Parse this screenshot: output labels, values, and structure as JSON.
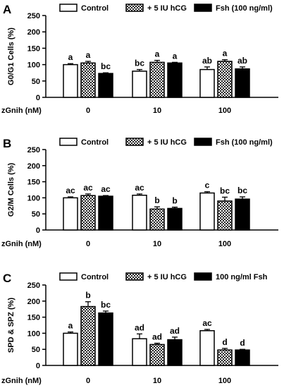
{
  "chart_data": [
    {
      "type": "bar",
      "panel_letter": "A",
      "categories": [
        "0",
        "10",
        "100"
      ],
      "xlabel": "zGnih (nM)",
      "ylabel": "G0/G1 Cells (%)",
      "ylim": [
        0,
        250
      ],
      "yticks": [
        0,
        50,
        100,
        150,
        200,
        250
      ],
      "legend_position": "top",
      "series": [
        {
          "name": "Control",
          "fill": "white",
          "values": [
            100,
            80,
            85
          ],
          "errors": [
            3,
            5,
            8
          ],
          "letters": [
            "a",
            "bc",
            "ab"
          ]
        },
        {
          "name": "+ 5 IU hCG",
          "fill": "checker",
          "values": [
            105,
            107,
            110
          ],
          "errors": [
            5,
            6,
            5
          ],
          "letters": [
            "a",
            "a",
            "a"
          ]
        },
        {
          "name": "Fsh (100 ng/ml)",
          "fill": "black",
          "values": [
            73,
            105,
            87
          ],
          "errors": [
            2,
            2,
            6
          ],
          "letters": [
            "bc",
            "a",
            "ab"
          ]
        }
      ]
    },
    {
      "type": "bar",
      "panel_letter": "B",
      "categories": [
        "0",
        "10",
        "100"
      ],
      "xlabel": "zGnih (nM)",
      "ylabel": "G2/M Cells (%)",
      "ylim": [
        0,
        250
      ],
      "yticks": [
        0,
        50,
        100,
        150,
        200,
        250
      ],
      "legend_position": "top",
      "series": [
        {
          "name": "Control",
          "fill": "white",
          "values": [
            100,
            108,
            115
          ],
          "errors": [
            3,
            4,
            4
          ],
          "letters": [
            "ac",
            "ac",
            "c"
          ]
        },
        {
          "name": "+ 5 IU hCG",
          "fill": "checker",
          "values": [
            107,
            65,
            90
          ],
          "errors": [
            5,
            7,
            12
          ],
          "letters": [
            "ac",
            "b",
            "bc"
          ]
        },
        {
          "name": "Fsh (100 ng/ml)",
          "fill": "black",
          "values": [
            105,
            67,
            96
          ],
          "errors": [
            2,
            4,
            7
          ],
          "letters": [
            "ac",
            "b",
            "bc"
          ]
        }
      ]
    },
    {
      "type": "bar",
      "panel_letter": "C",
      "categories": [
        "0",
        "10",
        "100"
      ],
      "xlabel": "zGnih (nM)",
      "ylabel": "SPD & SPZ (%)",
      "ylim": [
        0,
        250
      ],
      "yticks": [
        0,
        50,
        100,
        150,
        200,
        250
      ],
      "legend_position": "top",
      "series": [
        {
          "name": "Control",
          "fill": "white",
          "values": [
            100,
            83,
            108
          ],
          "errors": [
            4,
            15,
            4
          ],
          "letters": [
            "a",
            "ad",
            "ac"
          ]
        },
        {
          "name": "+ 5 IU hCG",
          "fill": "checker",
          "values": [
            183,
            65,
            48
          ],
          "errors": [
            15,
            4,
            5
          ],
          "letters": [
            "b",
            "ad",
            "d"
          ]
        },
        {
          "name": "100 ng/ml Fsh",
          "fill": "black",
          "values": [
            163,
            80,
            48
          ],
          "errors": [
            6,
            8,
            2
          ],
          "letters": [
            "bc",
            "ad",
            "d"
          ]
        }
      ]
    }
  ]
}
